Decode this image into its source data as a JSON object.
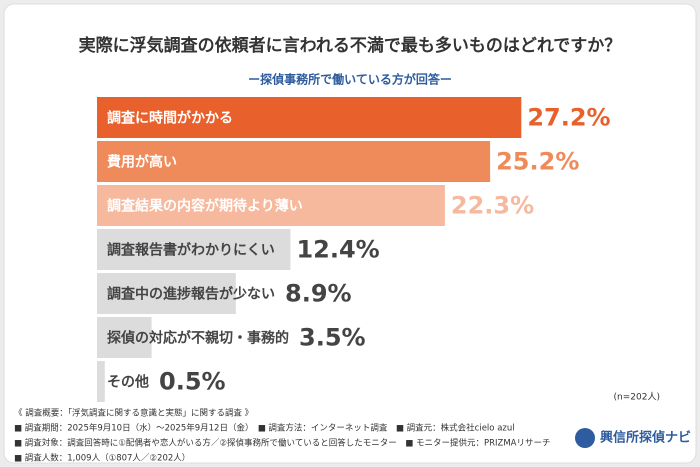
{
  "title": "実際に浮気調査の依頼者に言われる不満で最も多いものはどれですか？",
  "subtitle": "ー探偵事務所で働いている方が回答ー",
  "chart_data": {
    "type": "bar",
    "orientation": "horizontal",
    "categories": [
      "調査に時間がかかる",
      "費用が高い",
      "調査結果の内容が期待より薄い",
      "調査報告書がわかりにくい",
      "調査中の進捗報告が少ない",
      "探偵の対応が不親切・事務的",
      "その他"
    ],
    "values": [
      27.2,
      25.2,
      22.3,
      12.4,
      8.9,
      3.5,
      0.5
    ],
    "value_labels": [
      "27.2%",
      "25.2%",
      "22.3%",
      "12.4%",
      "8.9%",
      "3.5%",
      "0.5%"
    ],
    "colors": [
      "#e8612c",
      "#ef8a5a",
      "#f6b99d",
      "#dcdcdc",
      "#dcdcdc",
      "#dcdcdc",
      "#dcdcdc"
    ],
    "label_colors": [
      "#e8612c",
      "#ef8a5a",
      "#f6b99d",
      "#444444",
      "#444444",
      "#444444",
      "#444444"
    ],
    "category_label_colors": [
      "#ffffff",
      "#ffffff",
      "#ffffff",
      "#444444",
      "#444444",
      "#444444",
      "#444444"
    ],
    "note": "(n=202人)"
  },
  "footer": {
    "lines": [
      "《 調査概要：「浮気調査に関する意識と実態」に関する調査 》",
      "■ 調査期間：2025年9月10日（水）～2025年9月12日（金）　■ 調査方法：インターネット調査　■ 調査元：株式会社cielo azul",
      "■ 調査対象：調査回答時に①配偶者や恋人がいる方／②探偵事務所で働いていると回答したモニター　■ モニター提供元：PRIZMAリサーチ",
      "■ 調査人数：1,009人（①807人／②202人）"
    ],
    "logo": "興信所探偵ナビ"
  }
}
